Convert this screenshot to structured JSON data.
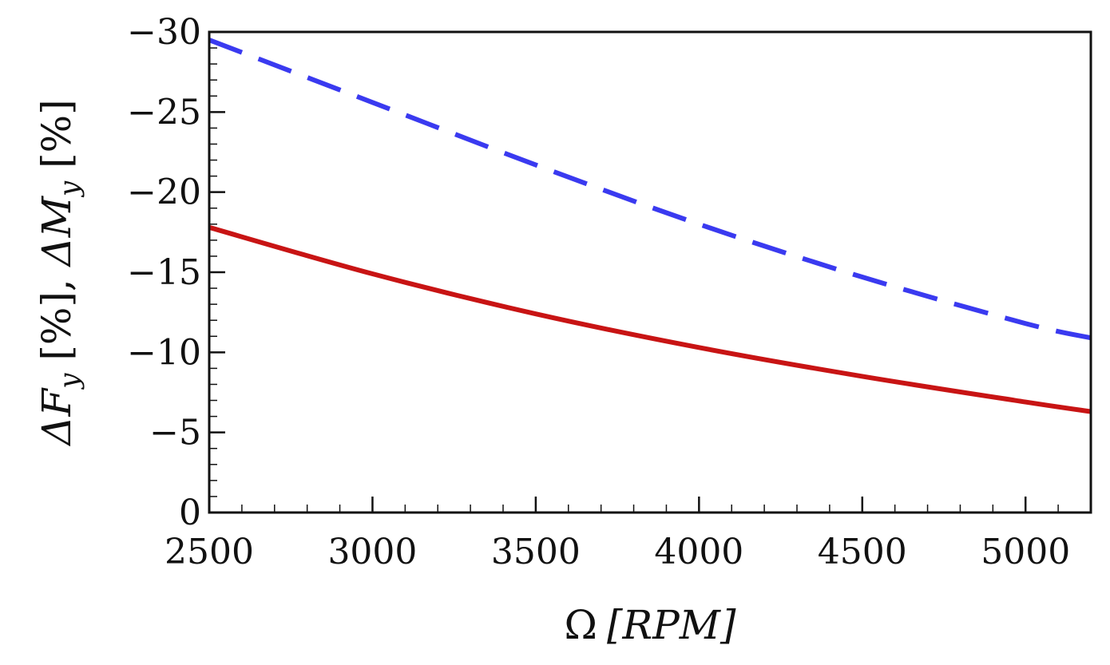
{
  "chart_data": {
    "type": "line",
    "title": "",
    "xlabel": "Ω [RPM]",
    "ylabel": "ΔFy [%], ΔMy [%]",
    "xlim": [
      2500,
      5200
    ],
    "ylim": [
      0,
      -30
    ],
    "y_axis_inverted": true,
    "x_ticks": [
      2500,
      3000,
      3500,
      4000,
      4500,
      5000
    ],
    "x_tick_labels": [
      "2500",
      "3000",
      "3500",
      "4000",
      "4500",
      "5000"
    ],
    "y_ticks": [
      -30,
      -25,
      -20,
      -15,
      -10,
      -5,
      0
    ],
    "y_tick_labels": [
      "−30",
      "−25",
      "−20",
      "−15",
      "−10",
      "−5",
      "0"
    ],
    "grid": false,
    "legend": "none",
    "series": [
      {
        "name": "ΔMy",
        "style": "dashed",
        "color": "#3a3af0",
        "x": [
          2500,
          3000,
          3500,
          4000,
          4500,
          5000,
          5200
        ],
        "y": [
          -29.5,
          -25.6,
          -21.7,
          -18.0,
          -14.7,
          -11.8,
          -10.9
        ]
      },
      {
        "name": "ΔFy",
        "style": "solid",
        "color": "#c81414",
        "x": [
          2500,
          3000,
          3500,
          4000,
          4500,
          5000,
          5200
        ],
        "y": [
          -17.8,
          -14.9,
          -12.4,
          -10.3,
          -8.5,
          -6.9,
          -6.3
        ]
      }
    ],
    "axis_label_parts": {
      "x_omega": "Ω",
      "x_rpm": "[RPM]",
      "y_delta_f": "ΔF",
      "y_sub_f": "y",
      "y_pct_1": " [%], ",
      "y_delta_m": "ΔM",
      "y_sub_m": "y",
      "y_pct_2": " [%]"
    }
  }
}
